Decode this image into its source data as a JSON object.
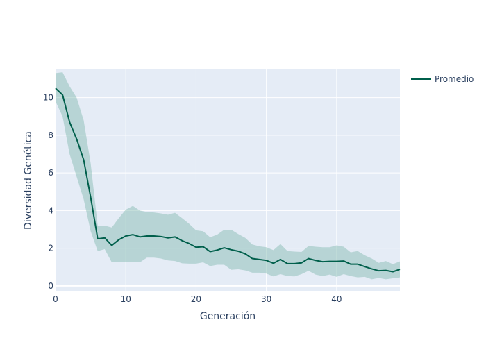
{
  "chart_data": {
    "type": "line",
    "xlabel": "Generación",
    "ylabel": "Diversidad Genética",
    "xlim": [
      0,
      49
    ],
    "ylim": [
      -0.3,
      11.5
    ],
    "x_ticks": [
      0,
      10,
      20,
      30,
      40
    ],
    "y_ticks": [
      0,
      2,
      4,
      6,
      8,
      10
    ],
    "grid": true,
    "legend_position": "top-right",
    "background_color": "#e5ecf6",
    "line_color": "#005f4b",
    "band_color": "#7fb8ac",
    "series": [
      {
        "name": "Promedio",
        "x": [
          0,
          1,
          2,
          3,
          4,
          5,
          6,
          7,
          8,
          9,
          10,
          11,
          12,
          13,
          14,
          15,
          16,
          17,
          18,
          19,
          20,
          21,
          22,
          23,
          24,
          25,
          26,
          27,
          28,
          29,
          30,
          31,
          32,
          33,
          34,
          35,
          36,
          37,
          38,
          39,
          40,
          41,
          42,
          43,
          44,
          45,
          46,
          47,
          48,
          49
        ],
        "mean": [
          10.5,
          10.15,
          8.7,
          7.8,
          6.7,
          4.7,
          2.5,
          2.55,
          2.15,
          2.45,
          2.65,
          2.72,
          2.6,
          2.65,
          2.65,
          2.62,
          2.55,
          2.6,
          2.4,
          2.25,
          2.05,
          2.08,
          1.82,
          1.9,
          2.02,
          1.92,
          1.84,
          1.7,
          1.45,
          1.4,
          1.35,
          1.2,
          1.4,
          1.18,
          1.18,
          1.22,
          1.45,
          1.35,
          1.28,
          1.3,
          1.3,
          1.32,
          1.15,
          1.15,
          1.02,
          0.9,
          0.8,
          0.82,
          0.75,
          0.88
        ],
        "upper": [
          11.3,
          11.35,
          10.6,
          10.0,
          8.8,
          6.5,
          3.2,
          3.2,
          3.1,
          3.6,
          4.05,
          4.25,
          4.0,
          3.92,
          3.9,
          3.85,
          3.78,
          3.88,
          3.6,
          3.3,
          2.95,
          2.9,
          2.58,
          2.72,
          2.98,
          2.98,
          2.75,
          2.55,
          2.2,
          2.1,
          2.05,
          1.9,
          2.22,
          1.85,
          1.82,
          1.8,
          2.12,
          2.08,
          2.05,
          2.05,
          2.15,
          2.08,
          1.78,
          1.85,
          1.62,
          1.45,
          1.22,
          1.32,
          1.15,
          1.3
        ],
        "lower": [
          9.8,
          9.0,
          7.0,
          5.8,
          4.6,
          2.9,
          1.85,
          1.95,
          1.25,
          1.25,
          1.28,
          1.28,
          1.25,
          1.5,
          1.5,
          1.45,
          1.35,
          1.32,
          1.2,
          1.18,
          1.18,
          1.25,
          1.05,
          1.12,
          1.12,
          0.85,
          0.88,
          0.82,
          0.7,
          0.7,
          0.65,
          0.5,
          0.62,
          0.52,
          0.5,
          0.62,
          0.8,
          0.6,
          0.52,
          0.6,
          0.48,
          0.62,
          0.52,
          0.45,
          0.48,
          0.35,
          0.42,
          0.35,
          0.4,
          0.45
        ]
      }
    ]
  }
}
